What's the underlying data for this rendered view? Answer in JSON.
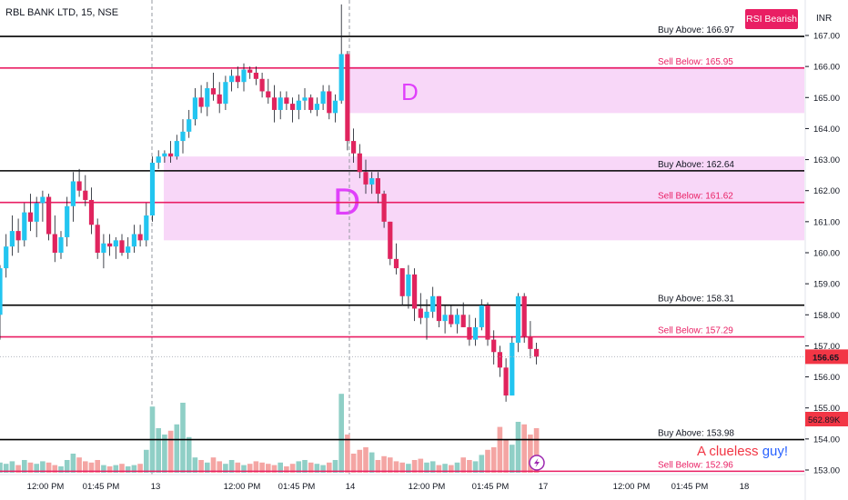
{
  "header": {
    "title": "RBL BANK LTD, 15, NSE",
    "badge": "RSI Bearish",
    "currency": "INR"
  },
  "watermark": {
    "word1": "A clueless",
    "word2": "guy!"
  },
  "price_tags": {
    "last": "156.65",
    "volume": "562.89K"
  },
  "colors": {
    "up": "#26a69a",
    "down": "#ef5350",
    "candle_up": "#22c5f0",
    "candle_down": "#e0245e",
    "buy_line": "#000000",
    "sell_line": "#e91e63",
    "zone": "#f8d7f8",
    "zone_letter": "#e040fb",
    "vol_up": "#8fcfc6",
    "vol_down": "#f4a5a3"
  },
  "chart_data": {
    "type": "candlestick",
    "symbol": "RBL BANK LTD",
    "interval": "15",
    "exchange": "NSE",
    "ylim": [
      152.8,
      168.0
    ],
    "y_ticks": [
      "167.00",
      "166.00",
      "165.00",
      "164.00",
      "163.00",
      "162.00",
      "161.00",
      "160.00",
      "159.00",
      "158.00",
      "157.00",
      "156.00",
      "155.00",
      "154.00",
      "153.00"
    ],
    "x_ticks": [
      "12:00 PM",
      "01:45 PM",
      "13",
      "12:00 PM",
      "01:45 PM",
      "14",
      "12:00 PM",
      "01:45 PM",
      "17",
      "12:00 PM",
      "01:45 PM",
      "18"
    ],
    "levels": [
      {
        "label": "Buy Above: 166.97",
        "value": 166.97,
        "kind": "buy"
      },
      {
        "label": "Sell Below: 165.95",
        "value": 165.95,
        "kind": "sell"
      },
      {
        "label": "Buy Above: 162.64",
        "value": 162.64,
        "kind": "buy"
      },
      {
        "label": "Sell Below: 161.62",
        "value": 161.62,
        "kind": "sell"
      },
      {
        "label": "Buy Above: 158.31",
        "value": 158.31,
        "kind": "buy"
      },
      {
        "label": "Sell Below: 157.29",
        "value": 157.29,
        "kind": "sell"
      },
      {
        "label": "Buy Above: 153.98",
        "value": 153.98,
        "kind": "buy"
      },
      {
        "label": "Sell Below: 152.96",
        "value": 152.96,
        "kind": "sell"
      }
    ],
    "zones": [
      {
        "label": "D",
        "from": 164.5,
        "to": 166.0
      },
      {
        "label": "D",
        "from": 160.4,
        "to": 163.1
      }
    ],
    "last_price": 156.65,
    "last_volume": "562.89K",
    "candles": [
      [
        158.0,
        159.6,
        157.2,
        159.5
      ],
      [
        159.5,
        160.6,
        159.2,
        160.2
      ],
      [
        160.2,
        161.2,
        159.9,
        160.7
      ],
      [
        160.7,
        161.1,
        160.0,
        160.4
      ],
      [
        160.4,
        161.6,
        160.2,
        161.3
      ],
      [
        161.3,
        161.9,
        160.7,
        161.0
      ],
      [
        161.0,
        161.8,
        160.5,
        161.6
      ],
      [
        161.6,
        162.0,
        161.0,
        161.8
      ],
      [
        161.8,
        161.9,
        160.4,
        160.6
      ],
      [
        160.6,
        161.2,
        159.7,
        160.0
      ],
      [
        160.0,
        160.7,
        159.8,
        160.5
      ],
      [
        160.5,
        161.8,
        160.2,
        161.5
      ],
      [
        161.5,
        162.6,
        161.0,
        162.3
      ],
      [
        162.3,
        162.7,
        161.8,
        162.0
      ],
      [
        162.0,
        162.5,
        161.5,
        161.7
      ],
      [
        161.7,
        162.1,
        160.6,
        160.9
      ],
      [
        160.9,
        161.1,
        159.8,
        160.0
      ],
      [
        160.0,
        160.6,
        159.5,
        160.3
      ],
      [
        160.3,
        160.6,
        159.9,
        160.2
      ],
      [
        160.2,
        160.5,
        159.8,
        160.4
      ],
      [
        160.4,
        160.6,
        159.9,
        160.0
      ],
      [
        160.0,
        160.5,
        159.8,
        160.2
      ],
      [
        160.2,
        160.9,
        160.0,
        160.6
      ],
      [
        160.6,
        160.9,
        160.2,
        160.4
      ],
      [
        160.4,
        161.6,
        160.2,
        161.2
      ],
      [
        161.2,
        163.1,
        161.0,
        162.9
      ],
      [
        162.9,
        163.3,
        162.7,
        163.1
      ],
      [
        163.1,
        163.3,
        162.9,
        163.2
      ],
      [
        163.2,
        163.6,
        162.9,
        163.1
      ],
      [
        163.1,
        163.8,
        163.0,
        163.6
      ],
      [
        163.6,
        164.3,
        163.2,
        163.9
      ],
      [
        163.9,
        164.6,
        163.7,
        164.3
      ],
      [
        164.3,
        165.3,
        164.1,
        165.0
      ],
      [
        165.0,
        165.4,
        164.5,
        164.7
      ],
      [
        164.7,
        165.5,
        164.4,
        165.3
      ],
      [
        165.3,
        165.8,
        164.9,
        165.1
      ],
      [
        165.1,
        165.5,
        164.5,
        164.8
      ],
      [
        164.8,
        165.7,
        164.6,
        165.5
      ],
      [
        165.5,
        165.9,
        165.2,
        165.7
      ],
      [
        165.7,
        166.0,
        165.3,
        165.5
      ],
      [
        165.5,
        166.1,
        165.2,
        165.9
      ],
      [
        165.9,
        166.0,
        165.6,
        165.8
      ],
      [
        165.8,
        166.0,
        165.4,
        165.6
      ],
      [
        165.6,
        165.8,
        165.0,
        165.2
      ],
      [
        165.2,
        165.6,
        164.8,
        165.0
      ],
      [
        165.0,
        165.4,
        164.2,
        164.6
      ],
      [
        164.6,
        165.2,
        164.3,
        165.0
      ],
      [
        165.0,
        165.2,
        164.6,
        164.8
      ],
      [
        164.8,
        165.0,
        164.2,
        164.6
      ],
      [
        164.6,
        165.1,
        164.3,
        164.9
      ],
      [
        164.9,
        165.3,
        164.6,
        165.0
      ],
      [
        165.0,
        165.1,
        164.5,
        164.6
      ],
      [
        164.6,
        165.0,
        164.4,
        164.8
      ],
      [
        164.8,
        165.4,
        164.6,
        165.2
      ],
      [
        165.2,
        165.4,
        164.3,
        164.5
      ],
      [
        164.5,
        165.1,
        164.2,
        164.9
      ],
      [
        164.9,
        168.0,
        164.8,
        166.4
      ],
      [
        166.4,
        166.5,
        163.3,
        163.6
      ],
      [
        163.6,
        164.0,
        162.9,
        163.2
      ],
      [
        163.2,
        163.5,
        162.4,
        162.6
      ],
      [
        162.6,
        163.0,
        161.9,
        162.2
      ],
      [
        162.2,
        162.6,
        161.9,
        162.4
      ],
      [
        162.4,
        162.6,
        161.6,
        161.9
      ],
      [
        161.9,
        162.0,
        160.8,
        161.0
      ],
      [
        161.0,
        161.0,
        159.6,
        159.8
      ],
      [
        159.8,
        160.3,
        159.3,
        159.5
      ],
      [
        159.5,
        159.5,
        158.3,
        158.6
      ],
      [
        158.6,
        159.6,
        158.2,
        159.3
      ],
      [
        159.3,
        159.5,
        157.8,
        158.2
      ],
      [
        158.2,
        158.7,
        157.7,
        157.9
      ],
      [
        157.9,
        158.5,
        157.2,
        158.1
      ],
      [
        158.1,
        158.9,
        157.9,
        158.6
      ],
      [
        158.6,
        158.6,
        157.6,
        157.8
      ],
      [
        157.8,
        158.3,
        157.4,
        158.0
      ],
      [
        158.0,
        158.3,
        157.6,
        157.7
      ],
      [
        157.7,
        158.2,
        157.4,
        158.0
      ],
      [
        158.0,
        158.4,
        157.6,
        157.6
      ],
      [
        157.6,
        158.0,
        157.0,
        157.2
      ],
      [
        157.2,
        157.9,
        157.0,
        157.6
      ],
      [
        157.6,
        158.5,
        157.5,
        158.3
      ],
      [
        158.3,
        158.4,
        157.0,
        157.2
      ],
      [
        157.2,
        157.5,
        156.4,
        156.8
      ],
      [
        156.8,
        157.0,
        156.0,
        156.3
      ],
      [
        156.3,
        156.6,
        155.2,
        155.4
      ],
      [
        155.4,
        157.3,
        155.4,
        157.1
      ],
      [
        157.1,
        158.7,
        156.8,
        158.6
      ],
      [
        158.6,
        158.7,
        157.1,
        157.3
      ],
      [
        157.3,
        157.8,
        156.6,
        156.9
      ],
      [
        156.9,
        157.1,
        156.4,
        156.65
      ]
    ],
    "volumes": [
      0.08,
      0.07,
      0.09,
      0.06,
      0.1,
      0.08,
      0.07,
      0.09,
      0.08,
      0.06,
      0.05,
      0.1,
      0.15,
      0.12,
      0.09,
      0.08,
      0.1,
      0.06,
      0.05,
      0.06,
      0.07,
      0.05,
      0.06,
      0.07,
      0.18,
      0.52,
      0.35,
      0.3,
      0.33,
      0.38,
      0.55,
      0.28,
      0.12,
      0.1,
      0.08,
      0.12,
      0.09,
      0.07,
      0.1,
      0.08,
      0.06,
      0.07,
      0.09,
      0.08,
      0.07,
      0.06,
      0.08,
      0.05,
      0.07,
      0.09,
      0.1,
      0.08,
      0.07,
      0.06,
      0.08,
      0.1,
      0.62,
      0.3,
      0.15,
      0.18,
      0.2,
      0.16,
      0.1,
      0.13,
      0.12,
      0.09,
      0.08,
      0.07,
      0.1,
      0.11,
      0.08,
      0.09,
      0.06,
      0.07,
      0.06,
      0.08,
      0.12,
      0.1,
      0.09,
      0.14,
      0.18,
      0.2,
      0.36,
      0.26,
      0.22,
      0.4,
      0.38,
      0.3,
      0.35
    ]
  }
}
